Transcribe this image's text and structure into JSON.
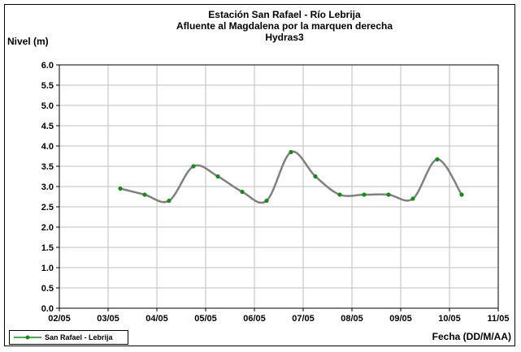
{
  "chart_data": {
    "type": "line",
    "title_lines": [
      "Estación San Rafael - Río Lebrija",
      "Afluente al Magdalena por la marquen derecha",
      "Hydras3"
    ],
    "ylabel": "Nivel (m)",
    "xlabel": "Fecha (DD/M/AA)",
    "ylim": [
      0,
      6
    ],
    "y_ticks": [
      "0.0",
      "0.5",
      "1.0",
      "1.5",
      "2.0",
      "2.5",
      "3.0",
      "3.5",
      "4.0",
      "4.5",
      "5.0",
      "5.5",
      "6.0"
    ],
    "x_ticks": [
      "02/05",
      "03/05",
      "04/05",
      "05/05",
      "06/05",
      "07/05",
      "08/05",
      "09/05",
      "10/05",
      "11/05"
    ],
    "xlim_days": [
      2,
      11
    ],
    "grid": true,
    "legend_position": "bottom-left",
    "series": [
      {
        "name": "San Rafael - Lebrija",
        "color": "#808080",
        "marker_color": "#1a8a1a",
        "x": [
          3.25,
          3.75,
          4.25,
          4.75,
          5.25,
          5.75,
          6.25,
          6.75,
          7.25,
          7.75,
          8.25,
          8.75,
          9.25,
          9.75,
          10.25
        ],
        "values": [
          2.95,
          2.8,
          2.65,
          3.5,
          3.25,
          2.87,
          2.65,
          3.85,
          3.25,
          2.8,
          2.8,
          2.8,
          2.7,
          3.67,
          2.8
        ]
      }
    ]
  }
}
